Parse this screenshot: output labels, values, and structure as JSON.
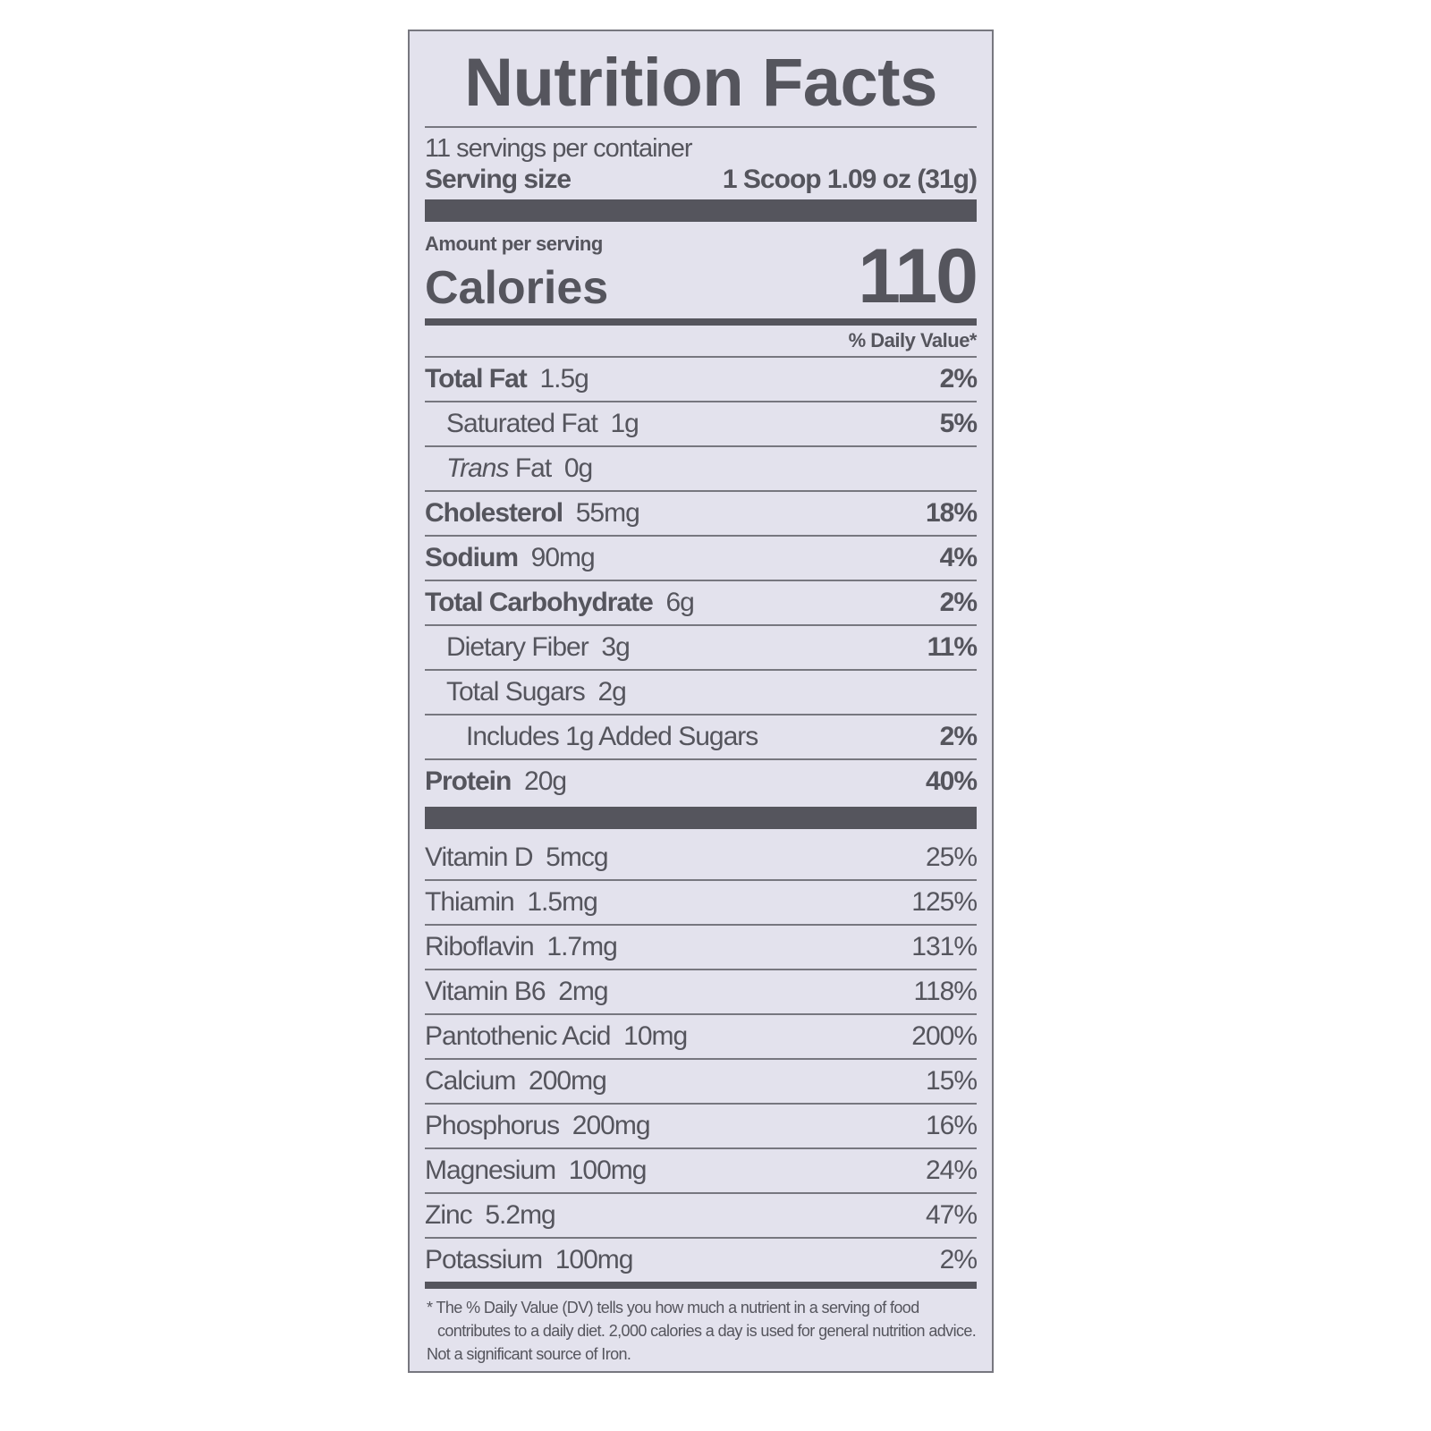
{
  "title": "Nutrition Facts",
  "servings_per_container": "11 servings per container",
  "serving_size_label": "Serving size",
  "serving_size_value": "1 Scoop 1.09 oz (31g)",
  "amount_per_serving": "Amount per serving",
  "calories_label": "Calories",
  "calories_value": "110",
  "daily_value_header": "% Daily Value*",
  "nutrients": [
    {
      "name": "Total Fat",
      "amount": "1.5g",
      "dv": "2%",
      "bold": true,
      "indent": 0
    },
    {
      "name": "Saturated Fat",
      "amount": "1g",
      "dv": "5%",
      "bold": false,
      "indent": 1
    },
    {
      "name": "Trans",
      "name_suffix": "Fat",
      "amount": "0g",
      "dv": "",
      "bold": false,
      "indent": 1,
      "italic": true
    },
    {
      "name": "Cholesterol",
      "amount": "55mg",
      "dv": "18%",
      "bold": true,
      "indent": 0
    },
    {
      "name": "Sodium",
      "amount": "90mg",
      "dv": "4%",
      "bold": true,
      "indent": 0
    },
    {
      "name": "Total Carbohydrate",
      "amount": "6g",
      "dv": "2%",
      "bold": true,
      "indent": 0
    },
    {
      "name": "Dietary Fiber",
      "amount": "3g",
      "dv": "11%",
      "bold": false,
      "indent": 1
    },
    {
      "name": "Total Sugars",
      "amount": "2g",
      "dv": "",
      "bold": false,
      "indent": 1
    },
    {
      "name": "Includes 1g Added Sugars",
      "amount": "",
      "dv": "2%",
      "bold": false,
      "indent": 2
    },
    {
      "name": "Protein",
      "amount": "20g",
      "dv": "40%",
      "bold": true,
      "indent": 0
    }
  ],
  "vitamins": [
    {
      "name": "Vitamin D",
      "amount": "5mcg",
      "dv": "25%"
    },
    {
      "name": "Thiamin",
      "amount": "1.5mg",
      "dv": "125%"
    },
    {
      "name": "Riboflavin",
      "amount": "1.7mg",
      "dv": "131%"
    },
    {
      "name": "Vitamin B6",
      "amount": "2mg",
      "dv": "118%"
    },
    {
      "name": "Pantothenic Acid",
      "amount": "10mg",
      "dv": "200%"
    },
    {
      "name": "Calcium",
      "amount": "200mg",
      "dv": "15%"
    },
    {
      "name": "Phosphorus",
      "amount": "200mg",
      "dv": "16%"
    },
    {
      "name": "Magnesium",
      "amount": "100mg",
      "dv": "24%"
    },
    {
      "name": "Zinc",
      "amount": "5.2mg",
      "dv": "47%"
    },
    {
      "name": "Potassium",
      "amount": "100mg",
      "dv": "2%"
    }
  ],
  "footnote": "* The % Daily Value (DV) tells you how much a nutrient in a serving of food contributes to a daily diet. 2,000 calories a day is used for general nutrition advice.",
  "footnote_2": "Not a significant source of Iron.",
  "colors": {
    "label_background": "#e3e2ed",
    "ink": "#55555d"
  }
}
